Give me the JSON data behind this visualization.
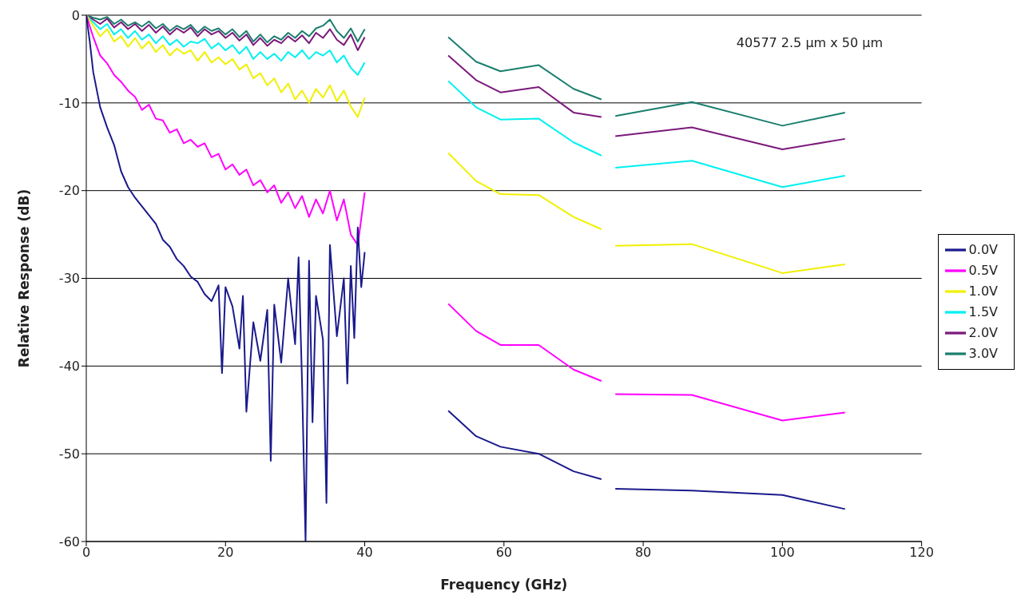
{
  "chart_data": {
    "type": "line",
    "xlabel": "Frequency (GHz)",
    "ylabel": "Relative Response (dB)",
    "annotations": [
      "40577 2.5 µm x 50 µm"
    ],
    "xlim": [
      0,
      120
    ],
    "xticks": [
      0,
      20,
      40,
      60,
      80,
      100,
      120
    ],
    "ylim": [
      -60,
      0
    ],
    "yticks": [
      -60,
      -50,
      -40,
      -30,
      -20,
      -10,
      0
    ],
    "grid": "y",
    "legend": "right",
    "marker": "none",
    "line_style": "solid",
    "series": [
      {
        "name": "3.0V",
        "color": "#1a7f6e",
        "x": [
          0,
          1,
          2,
          3,
          4,
          5,
          6,
          7,
          8,
          9,
          10,
          11,
          12,
          13,
          14,
          15,
          16,
          17,
          18,
          19,
          20,
          21,
          22,
          23,
          24,
          25,
          26,
          27,
          28,
          29,
          30,
          31,
          32,
          33,
          34,
          35,
          36,
          37,
          38,
          39,
          40,
          46,
          52,
          56,
          59.5,
          65,
          70,
          74,
          75,
          76,
          87,
          100,
          109
        ],
        "values": [
          0,
          -0.3,
          -0.5,
          -0.2,
          -1,
          -0.5,
          -1.2,
          -0.8,
          -1.3,
          -0.7,
          -1.5,
          -1,
          -1.8,
          -1.2,
          -1.6,
          -1.1,
          -2,
          -1.3,
          -1.8,
          -1.5,
          -2.2,
          -1.6,
          -2.5,
          -1.8,
          -3,
          -2.2,
          -3.1,
          -2.4,
          -2.8,
          -2,
          -2.6,
          -1.8,
          -2.4,
          -1.5,
          -1.2,
          -0.5,
          -1.8,
          -2.6,
          -1.5,
          -3,
          -1.6,
          null,
          -2.5,
          -5.3,
          -6.4,
          -5.7,
          -8.4,
          -9.6,
          null,
          -11.5,
          -9.9,
          -12.6,
          -11.1
        ]
      },
      {
        "name": "2.0V",
        "color": "#7b1a7b",
        "x": [
          0,
          1,
          2,
          3,
          4,
          5,
          6,
          7,
          8,
          9,
          10,
          11,
          12,
          13,
          14,
          15,
          16,
          17,
          18,
          19,
          20,
          21,
          22,
          23,
          24,
          25,
          26,
          27,
          28,
          29,
          30,
          31,
          32,
          33,
          34,
          35,
          36,
          37,
          38,
          39,
          40,
          46,
          52,
          56,
          59.5,
          65,
          70,
          74,
          75,
          76,
          87,
          100,
          109
        ],
        "values": [
          0,
          -0.5,
          -1,
          -0.4,
          -1.4,
          -0.8,
          -1.6,
          -1,
          -1.8,
          -1.1,
          -2,
          -1.3,
          -2.2,
          -1.5,
          -2,
          -1.4,
          -2.4,
          -1.6,
          -2.2,
          -1.8,
          -2.6,
          -2,
          -2.9,
          -2.2,
          -3.4,
          -2.6,
          -3.5,
          -2.8,
          -3.2,
          -2.4,
          -3,
          -2.3,
          -3.2,
          -2,
          -2.6,
          -1.6,
          -2.8,
          -3.4,
          -2.2,
          -4,
          -2.5,
          null,
          -4.6,
          -7.4,
          -8.8,
          -8.2,
          -11.1,
          -11.6,
          null,
          -13.8,
          -12.8,
          -15.3,
          -14.1
        ]
      },
      {
        "name": "1.5V",
        "color": "#00f0f0",
        "x": [
          0,
          1,
          2,
          3,
          4,
          5,
          6,
          7,
          8,
          9,
          10,
          11,
          12,
          13,
          14,
          15,
          16,
          17,
          18,
          19,
          20,
          21,
          22,
          23,
          24,
          25,
          26,
          27,
          28,
          29,
          30,
          31,
          32,
          33,
          34,
          35,
          36,
          37,
          38,
          39,
          40,
          46,
          52,
          56,
          59.5,
          65,
          70,
          74,
          75,
          76,
          87,
          100,
          109
        ],
        "values": [
          0,
          -0.8,
          -1.6,
          -1,
          -2.2,
          -1.6,
          -2.6,
          -1.8,
          -2.8,
          -2.2,
          -3.2,
          -2.4,
          -3.4,
          -2.8,
          -3.6,
          -3,
          -3.2,
          -2.7,
          -3.8,
          -3.2,
          -4,
          -3.4,
          -4.4,
          -3.6,
          -5,
          -4.2,
          -5,
          -4.4,
          -5.2,
          -4.2,
          -4.8,
          -4,
          -5,
          -4.2,
          -4.6,
          -4,
          -5.4,
          -4.6,
          -6,
          -6.8,
          -5.4,
          null,
          -7.5,
          -10.5,
          -11.9,
          -11.8,
          -14.5,
          -16,
          null,
          -17.4,
          -16.6,
          -19.6,
          -18.3
        ]
      },
      {
        "name": "1.0V",
        "color": "#f0f000",
        "x": [
          0,
          1,
          2,
          3,
          4,
          5,
          6,
          7,
          8,
          9,
          10,
          11,
          12,
          13,
          14,
          15,
          16,
          17,
          18,
          19,
          20,
          21,
          22,
          23,
          24,
          25,
          26,
          27,
          28,
          29,
          30,
          31,
          32,
          33,
          34,
          35,
          36,
          37,
          38,
          39,
          40,
          46,
          52,
          56,
          59.5,
          65,
          70,
          74,
          75,
          76,
          87,
          100,
          109
        ],
        "values": [
          0,
          -1.2,
          -2.4,
          -1.6,
          -3,
          -2.4,
          -3.6,
          -2.6,
          -3.8,
          -3,
          -4.2,
          -3.4,
          -4.6,
          -3.8,
          -4.4,
          -4,
          -5.2,
          -4.2,
          -5.4,
          -4.8,
          -5.6,
          -5,
          -6.2,
          -5.6,
          -7.2,
          -6.6,
          -8,
          -7.2,
          -8.8,
          -7.8,
          -9.6,
          -8.6,
          -10,
          -8.4,
          -9.4,
          -8,
          -9.8,
          -8.6,
          -10.4,
          -11.6,
          -9.4,
          null,
          -15.7,
          -18.9,
          -20.4,
          -20.5,
          -23,
          -24.4,
          null,
          -26.3,
          -26.1,
          -29.4,
          -28.4
        ]
      },
      {
        "name": "0.5V",
        "color": "#ff00ff",
        "x": [
          0,
          1,
          2,
          3,
          4,
          5,
          6,
          7,
          8,
          9,
          10,
          11,
          12,
          13,
          14,
          15,
          16,
          17,
          18,
          19,
          20,
          21,
          22,
          23,
          24,
          25,
          26,
          27,
          28,
          29,
          30,
          31,
          32,
          33,
          34,
          35,
          36,
          37,
          38,
          39,
          40,
          46,
          52,
          56,
          59.5,
          65,
          70,
          74,
          75,
          76,
          87,
          100,
          109
        ],
        "values": [
          0,
          -2.5,
          -4.6,
          -5.5,
          -6.8,
          -7.6,
          -8.6,
          -9.3,
          -10.8,
          -10.2,
          -11.8,
          -12,
          -13.4,
          -13,
          -14.6,
          -14.2,
          -15,
          -14.6,
          -16.2,
          -15.8,
          -17.6,
          -17,
          -18.2,
          -17.6,
          -19.4,
          -18.8,
          -20.2,
          -19.4,
          -21.4,
          -20.2,
          -22,
          -20.6,
          -23,
          -21,
          -22.6,
          -20,
          -23.4,
          -21,
          -25,
          -26.2,
          -20.2,
          null,
          -32.9,
          -36,
          -37.6,
          -37.6,
          -40.4,
          -41.7,
          null,
          -43.2,
          -43.3,
          -46.2,
          -45.3
        ]
      },
      {
        "name": "0.0V",
        "color": "#1a1a8c",
        "x": [
          0,
          0.5,
          1,
          2,
          3,
          4,
          5,
          6,
          7,
          8,
          9,
          10,
          11,
          12,
          13,
          14,
          15,
          16,
          17,
          18,
          19,
          19.5,
          20,
          21,
          22,
          22.5,
          23,
          24,
          25,
          26,
          26.5,
          27,
          28,
          29,
          30,
          30.5,
          31,
          31.5,
          32,
          32.5,
          33,
          34,
          34.5,
          35,
          36,
          37,
          37.5,
          38,
          38.5,
          39,
          39.5,
          40,
          46,
          52,
          56,
          59.5,
          65,
          70,
          74,
          75,
          76,
          87,
          100,
          109
        ],
        "values": [
          0,
          -3,
          -6.5,
          -10.5,
          -12.8,
          -14.8,
          -17.8,
          -19.6,
          -20.8,
          -21.8,
          -22.8,
          -23.8,
          -25.6,
          -26.4,
          -27.8,
          -28.6,
          -29.8,
          -30.4,
          -31.8,
          -32.6,
          -30.8,
          -40.8,
          -31,
          -33.2,
          -38,
          -32,
          -45.2,
          -35,
          -39.4,
          -33.6,
          -50.8,
          -33,
          -39.6,
          -30,
          -37.5,
          -27.6,
          -42,
          -60,
          -28,
          -46.4,
          -32,
          -37,
          -55.6,
          -26.2,
          -36.6,
          -30,
          -42,
          -28.6,
          -36.8,
          -24.2,
          -31,
          -27,
          null,
          -45.1,
          -48,
          -49.2,
          -50,
          -52,
          -52.9,
          null,
          -54,
          -54.2,
          -54.7,
          -56.3
        ]
      }
    ]
  }
}
